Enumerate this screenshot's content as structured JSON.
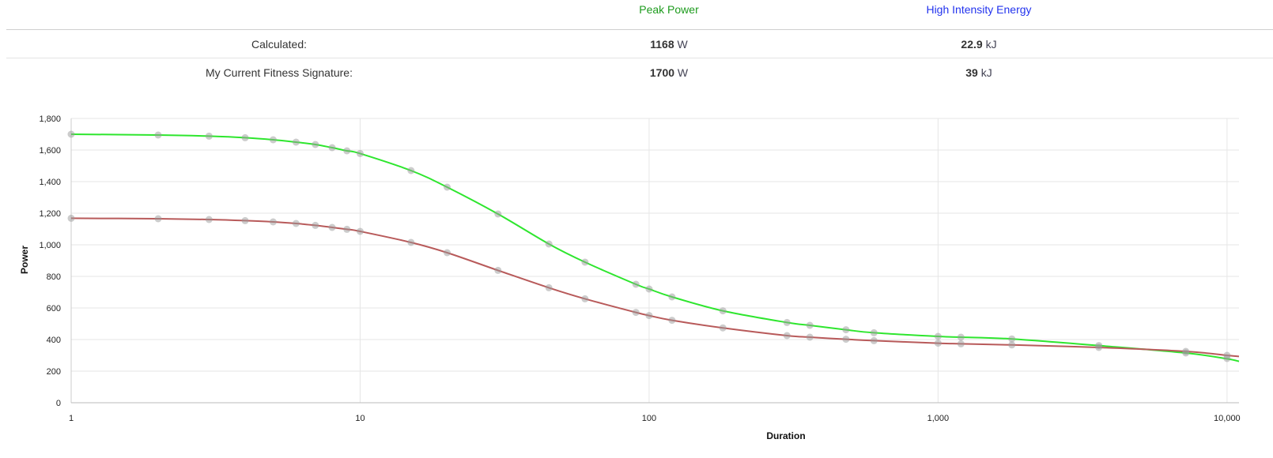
{
  "summary": {
    "headers": {
      "peak_power": "Peak Power",
      "high_intensity_energy": "High Intensity Energy"
    },
    "rows": [
      {
        "label": "Calculated:",
        "peak_value": "1168",
        "peak_unit": "W",
        "hie_value": "22.9",
        "hie_unit": "kJ"
      },
      {
        "label": "My Current Fitness Signature:",
        "peak_value": "1700",
        "peak_unit": "W",
        "hie_value": "39",
        "hie_unit": "kJ"
      }
    ]
  },
  "chart_data": {
    "type": "line",
    "xlabel": "Duration",
    "ylabel": "Power",
    "x_scale": "log",
    "xlim": [
      1,
      11000
    ],
    "ylim": [
      0,
      1800
    ],
    "x_ticks": [
      "1",
      "10",
      "100",
      "1,000",
      "10,000"
    ],
    "y_ticks": [
      "0",
      "200",
      "400",
      "600",
      "800",
      "1,000",
      "1,200",
      "1,400",
      "1,600",
      "1,800"
    ],
    "grid": true,
    "colors": {
      "signature": "#2ee62e",
      "calculated": "#b85a5a",
      "points": "#999999"
    },
    "series": [
      {
        "color": "#2ee62e",
        "x": [
          1,
          2,
          3,
          4,
          5,
          6,
          7,
          8,
          9,
          10,
          15,
          20,
          30,
          45,
          60,
          90,
          100,
          120,
          180,
          300,
          360,
          480,
          600,
          1000,
          1200,
          1800,
          3600,
          7200,
          10000,
          11000
        ],
        "y": [
          1700,
          1695,
          1688,
          1678,
          1665,
          1650,
          1635,
          1615,
          1595,
          1578,
          1470,
          1365,
          1195,
          1005,
          890,
          750,
          720,
          670,
          582,
          508,
          490,
          462,
          443,
          420,
          415,
          404,
          362,
          315,
          278,
          262
        ]
      },
      {
        "color": "#b85a5a",
        "x": [
          1,
          2,
          3,
          4,
          5,
          6,
          7,
          8,
          9,
          10,
          15,
          20,
          30,
          45,
          60,
          90,
          100,
          120,
          180,
          300,
          360,
          480,
          600,
          1000,
          1200,
          1800,
          3600,
          7200,
          10000,
          11000
        ],
        "y": [
          1168,
          1165,
          1160,
          1153,
          1145,
          1135,
          1123,
          1110,
          1098,
          1085,
          1015,
          950,
          838,
          728,
          658,
          572,
          552,
          522,
          474,
          425,
          415,
          402,
          393,
          377,
          373,
          366,
          350,
          325,
          300,
          293
        ]
      }
    ],
    "scatter": {
      "x": [
        1,
        2,
        3,
        4,
        5,
        6,
        7,
        8,
        9,
        10,
        15,
        20,
        30,
        45,
        60,
        90,
        100,
        120,
        180,
        300,
        360,
        480,
        600,
        1000,
        1200,
        1800,
        3600,
        7200,
        10000,
        1,
        2,
        3,
        4,
        5,
        6,
        7,
        8,
        9,
        10,
        15,
        20,
        30,
        45,
        60,
        90,
        100,
        120,
        180,
        300,
        360,
        480,
        600,
        1000,
        1200,
        1800,
        3600,
        7200,
        10000
      ],
      "y": [
        1700,
        1695,
        1688,
        1678,
        1665,
        1650,
        1635,
        1615,
        1595,
        1578,
        1470,
        1365,
        1195,
        1005,
        890,
        750,
        720,
        670,
        582,
        508,
        490,
        462,
        443,
        420,
        415,
        404,
        362,
        325,
        300,
        1168,
        1165,
        1160,
        1153,
        1145,
        1135,
        1123,
        1110,
        1098,
        1085,
        1015,
        950,
        838,
        728,
        658,
        572,
        552,
        522,
        474,
        425,
        415,
        402,
        393,
        377,
        373,
        366,
        350,
        315,
        280
      ]
    }
  }
}
